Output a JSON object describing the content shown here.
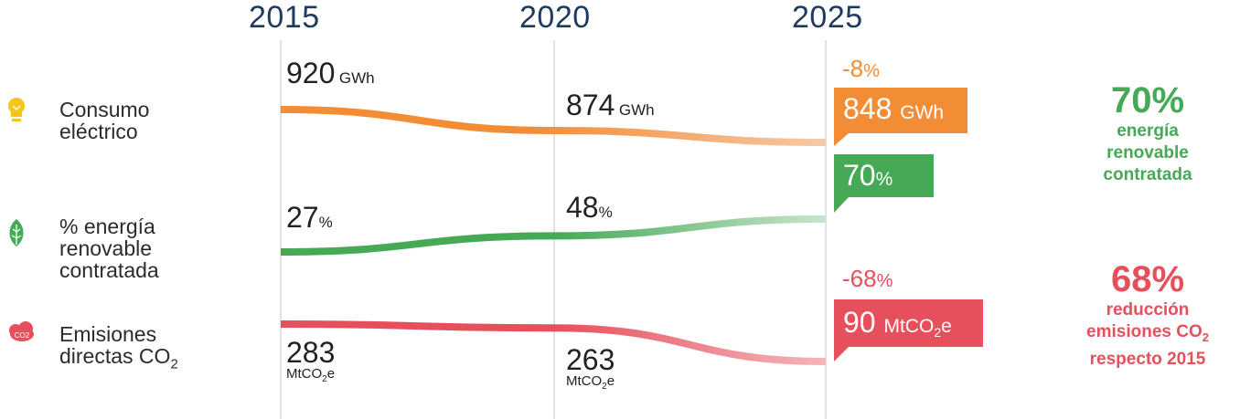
{
  "colors": {
    "electric": "#f28c35",
    "renewable": "#45a955",
    "emissions": "#e6505c",
    "year_text": "#1e3a5f",
    "gridline": "#d9d9d9"
  },
  "chart_data": {
    "type": "line",
    "x": [
      "2015",
      "2020",
      "2025"
    ],
    "series": [
      {
        "name": "Consumo eléctrico",
        "icon": "lightbulb-icon",
        "values": [
          920,
          874,
          848
        ],
        "labels": [
          "920",
          "874",
          "848"
        ],
        "unit": "GWh",
        "change": "-8%",
        "summary": {
          "value": "70%",
          "text": "energía renovable contratada"
        }
      },
      {
        "name": "% energía renovable contratada",
        "icon": "leaf-icon",
        "values": [
          27,
          48,
          70
        ],
        "labels": [
          "27",
          "48",
          "70"
        ],
        "unit": "%"
      },
      {
        "name": "Emisiones directas CO2",
        "icon": "co2-icon",
        "values": [
          283,
          263,
          90
        ],
        "labels": [
          "283",
          "263",
          "90"
        ],
        "unit": "MtCO2e",
        "change": "-68%",
        "summary": {
          "value": "68%",
          "text": "reducción emisiones CO2 respecto 2015"
        }
      }
    ]
  },
  "row_labels": {
    "electric": [
      "Consumo",
      "eléctrico"
    ],
    "renewable": [
      "% energía",
      "renovable",
      "contratada"
    ],
    "emissions": [
      "Emisiones",
      "directas CO"
    ]
  },
  "summaries": {
    "renewable": {
      "value": "70%",
      "lines": [
        "energía",
        "renovable",
        "contratada"
      ]
    },
    "emissions": {
      "value": "68%",
      "lines": [
        "reducción",
        "emisiones CO",
        "respecto 2015"
      ]
    }
  },
  "changes": {
    "electric": "-8",
    "emissions": "-68"
  },
  "units": {
    "gwh": "GWh",
    "pct": "%",
    "mt": "MtCO",
    "mt_tail": "e",
    "sub2": "2",
    "co2_badge": "CO2"
  }
}
